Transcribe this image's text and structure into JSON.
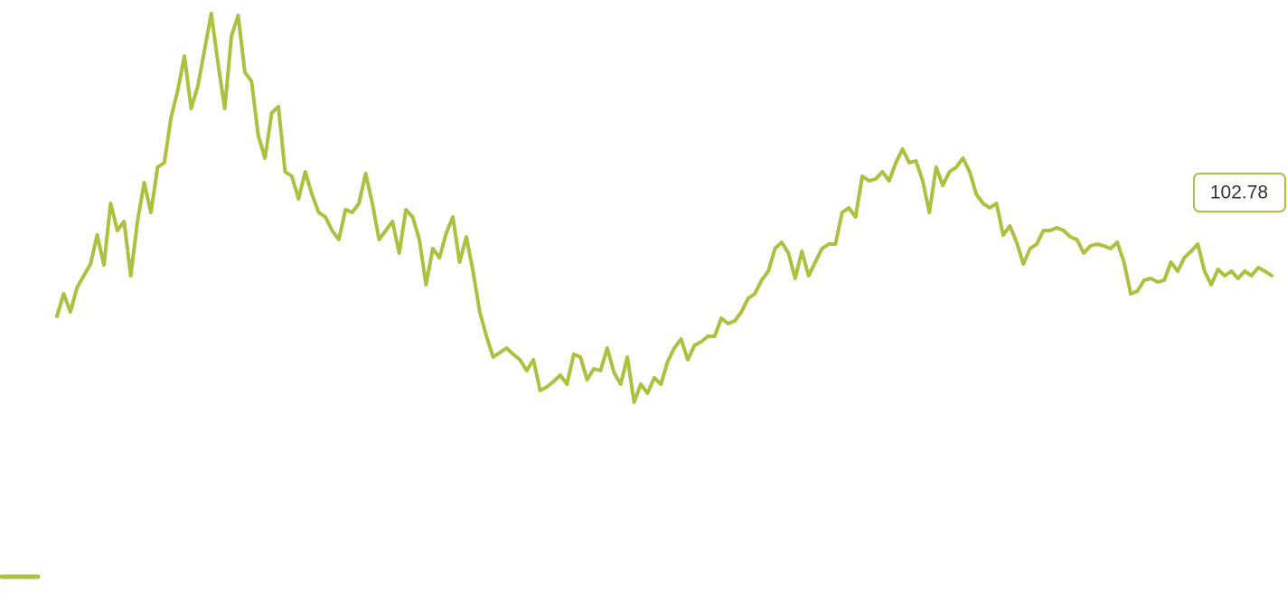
{
  "chart_data": {
    "type": "line",
    "color": "#a9c23f",
    "ylim": [
      24,
      179
    ],
    "values": [
      91.5,
      97.75,
      92.75,
      99.5,
      102.75,
      106,
      114,
      105.75,
      122.75,
      115.25,
      117.75,
      102.75,
      117.75,
      128.5,
      120.25,
      132.75,
      134,
      146.5,
      154,
      163.5,
      149,
      155.25,
      165.25,
      175.25,
      161.5,
      149,
      169,
      174.75,
      159,
      156.5,
      141.5,
      135.25,
      147.75,
      149.5,
      131.5,
      130.25,
      124,
      131.5,
      125.25,
      120.25,
      119,
      115.25,
      112.75,
      121,
      120.25,
      122.75,
      131,
      122.75,
      112.75,
      115.25,
      117.75,
      109,
      121,
      119,
      112.75,
      100.25,
      110.25,
      107.75,
      114.5,
      119,
      106.5,
      113.5,
      104,
      92.75,
      86,
      80.25,
      81.5,
      82.75,
      81,
      79.5,
      76.5,
      79.5,
      71,
      72,
      73.5,
      75.25,
      72.75,
      81,
      80.25,
      74,
      77,
      76.5,
      82.75,
      76,
      72.75,
      80.25,
      67.75,
      72.75,
      70.25,
      74.5,
      72.75,
      79,
      82.75,
      85.25,
      79.5,
      83.5,
      84.5,
      86,
      86,
      91,
      89.5,
      90.25,
      92.75,
      96.5,
      97.75,
      101.5,
      104,
      110.25,
      112,
      109,
      102,
      109.5,
      102.75,
      106.5,
      110.25,
      111.5,
      111.5,
      120.25,
      121.5,
      119,
      130.25,
      129,
      129.5,
      131.5,
      129,
      134,
      137.75,
      134,
      134.5,
      129,
      120.25,
      132.75,
      127.75,
      131.5,
      132.75,
      135.25,
      131.5,
      125.25,
      122.75,
      121.5,
      122.75,
      114,
      116.5,
      112,
      106,
      110.25,
      111.5,
      115.25,
      115.25,
      116,
      115.25,
      113.5,
      112.75,
      109,
      111,
      111.5,
      111,
      110.25,
      112,
      106.5,
      97.75,
      98.5,
      101.5,
      102,
      101,
      101.5,
      106.5,
      104,
      107.75,
      109.5,
      111.5,
      104,
      100.25,
      104.5,
      102.75,
      104,
      102,
      104,
      102.75,
      105,
      104,
      102.78
    ]
  }
}
